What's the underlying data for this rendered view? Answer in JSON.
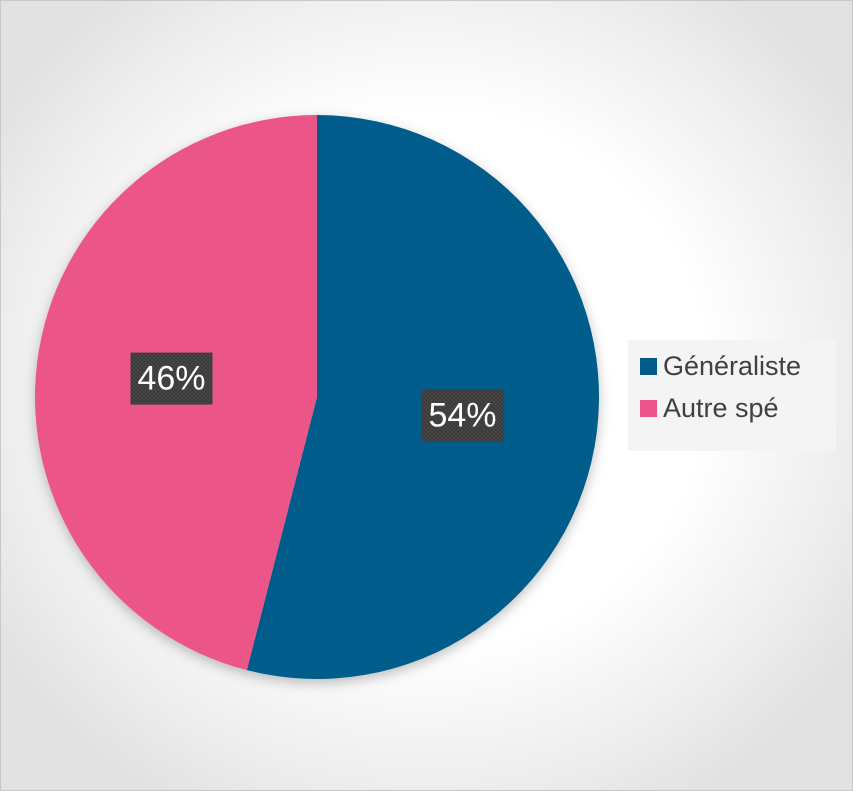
{
  "chart_data": {
    "type": "pie",
    "categories": [
      "Généraliste",
      "Autre spé"
    ],
    "values": [
      54,
      46
    ],
    "data_labels": [
      "54%",
      "46%"
    ],
    "colors": [
      "#005b8a",
      "#eb5488"
    ],
    "legend_placement": "right",
    "start_angle": "12 o'clock, clockwise"
  },
  "legend": {
    "items": [
      {
        "label": "Généraliste",
        "color": "#005b8a"
      },
      {
        "label": "Autre spé",
        "color": "#eb5488"
      }
    ]
  }
}
